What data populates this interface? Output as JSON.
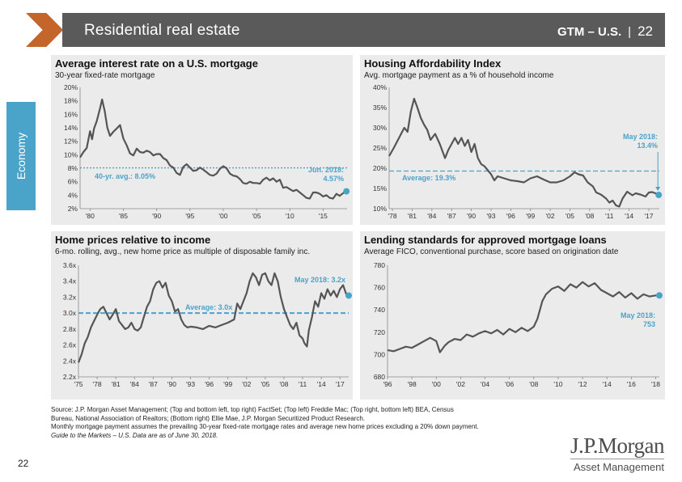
{
  "header": {
    "title": "Residential real estate",
    "tag": "GTM – U.S.",
    "separator": "|",
    "page": "22"
  },
  "side_tab": "Economy",
  "page_number": "22",
  "logo": {
    "line1": "J.P.Morgan",
    "line2": "Asset Management"
  },
  "footer": [
    "Source: J.P. Morgan Asset Management; (Top and bottom left, top right) FactSet; (Top left) Freddie Mac; (Top right, bottom left) BEA, Census",
    "Bureau, National Association of Realtors; (Bottom right) Ellie Mae, J.P. Morgan Securitized Product Research.",
    "Monthly mortgage payment assumes the prevailing 30-year fixed-rate mortgage rates and average new home prices excluding a 20% down payment.",
    "Guide to the Markets – U.S. Data are as of June 30, 2018."
  ],
  "colors": {
    "line": "#555555",
    "accent": "#4aa3c9",
    "panel": "#ebebeb",
    "header": "#5a5a5a",
    "arrow": "#c4652c"
  },
  "chart_data": [
    {
      "id": "mortgage",
      "type": "line",
      "title": "Average interest rate on a U.S. mortgage",
      "subtitle": "30-year fixed-rate mortgage",
      "ylim": [
        2,
        20
      ],
      "yticks": [
        2,
        4,
        6,
        8,
        10,
        12,
        14,
        16,
        18,
        20
      ],
      "yfmt": "{v}%",
      "xlim": [
        1978.5,
        2018.6
      ],
      "xticks": [
        1980,
        1985,
        1990,
        1995,
        2000,
        2005,
        2010,
        2015
      ],
      "xlabels": [
        "'80",
        "'85",
        "'90",
        "'95",
        "'00",
        "'05",
        "'10",
        "'15"
      ],
      "x": [
        1978.5,
        1979.0,
        1979.5,
        1980.0,
        1980.3,
        1980.6,
        1981.0,
        1981.5,
        1981.8,
        1982.2,
        1982.6,
        1983.0,
        1983.5,
        1984.0,
        1984.5,
        1985.0,
        1985.5,
        1986.0,
        1986.5,
        1987.0,
        1987.5,
        1988.0,
        1988.5,
        1989.0,
        1989.5,
        1990.0,
        1990.5,
        1991.0,
        1991.5,
        1992.0,
        1992.5,
        1993.0,
        1993.5,
        1994.0,
        1994.5,
        1995.0,
        1995.5,
        1996.0,
        1996.5,
        1997.0,
        1997.5,
        1998.0,
        1998.5,
        1999.0,
        1999.5,
        2000.0,
        2000.5,
        2001.0,
        2001.5,
        2002.0,
        2002.5,
        2003.0,
        2003.5,
        2004.0,
        2004.5,
        2005.0,
        2005.5,
        2006.0,
        2006.5,
        2007.0,
        2007.5,
        2008.0,
        2008.5,
        2009.0,
        2009.5,
        2010.0,
        2010.5,
        2011.0,
        2011.5,
        2012.0,
        2012.5,
        2013.0,
        2013.5,
        2014.0,
        2014.5,
        2015.0,
        2015.5,
        2016.0,
        2016.5,
        2017.0,
        2017.5,
        2018.0,
        2018.5
      ],
      "values": [
        9.6,
        10.4,
        11.0,
        13.5,
        12.3,
        13.9,
        15.0,
        16.9,
        18.2,
        16.5,
        14.0,
        12.8,
        13.4,
        13.9,
        14.4,
        12.4,
        11.4,
        10.2,
        9.9,
        10.9,
        10.4,
        10.3,
        10.6,
        10.4,
        9.9,
        10.1,
        10.1,
        9.5,
        9.2,
        8.4,
        8.1,
        7.3,
        7.0,
        8.2,
        8.6,
        8.1,
        7.6,
        7.7,
        8.1,
        7.8,
        7.4,
        7.0,
        6.9,
        7.2,
        7.9,
        8.3,
        8.0,
        7.2,
        6.9,
        6.8,
        6.4,
        5.8,
        5.7,
        6.0,
        5.8,
        5.8,
        5.7,
        6.3,
        6.6,
        6.2,
        6.5,
        6.0,
        6.3,
        5.1,
        5.2,
        4.9,
        4.6,
        4.8,
        4.4,
        4.0,
        3.6,
        3.5,
        4.4,
        4.4,
        4.2,
        3.8,
        4.0,
        3.6,
        3.5,
        4.2,
        3.9,
        4.3,
        4.57
      ],
      "avg": 8.05,
      "avg_label": "40-yr. avg.: 8.05%",
      "end_label": [
        "Jun. 2018:",
        "4.57%"
      ]
    },
    {
      "id": "affordability",
      "type": "line",
      "title": "Housing Affordability Index",
      "subtitle": "Avg. mortgage payment as a % of household income",
      "ylim": [
        10,
        40
      ],
      "yticks": [
        10,
        15,
        20,
        25,
        30,
        35,
        40
      ],
      "yfmt": "{v}%",
      "xlim": [
        1977.5,
        2018.6
      ],
      "xticks": [
        1978,
        1981,
        1984,
        1987,
        1990,
        1993,
        1996,
        1999,
        2002,
        2005,
        2008,
        2011,
        2014,
        2017
      ],
      "xlabels": [
        "'78",
        "'81",
        "'84",
        "'87",
        "'90",
        "'93",
        "'96",
        "'99",
        "'02",
        "'05",
        "'08",
        "'11",
        "'14",
        "'17"
      ],
      "x": [
        1977.5,
        1978.2,
        1979.0,
        1979.8,
        1980.3,
        1980.8,
        1981.3,
        1981.8,
        1982.3,
        1982.8,
        1983.3,
        1983.8,
        1984.5,
        1985.2,
        1986.0,
        1986.5,
        1987.0,
        1987.5,
        1988.0,
        1988.5,
        1989.0,
        1989.5,
        1990.0,
        1990.5,
        1991.0,
        1991.5,
        1992.0,
        1992.5,
        1993.0,
        1993.5,
        1994.0,
        1995.0,
        1996.0,
        1997.0,
        1998.0,
        1999.0,
        2000.0,
        2001.0,
        2002.0,
        2003.0,
        2004.0,
        2005.0,
        2005.7,
        2006.3,
        2007.0,
        2007.7,
        2008.5,
        2009.0,
        2009.7,
        2010.5,
        2011.0,
        2011.5,
        2012.0,
        2012.5,
        2013.0,
        2013.7,
        2014.5,
        2015.0,
        2015.7,
        2016.5,
        2017.0,
        2017.5,
        2018.0,
        2018.5
      ],
      "values": [
        23.0,
        25.0,
        27.5,
        30.0,
        29.0,
        34.0,
        37.2,
        35.0,
        32.5,
        30.8,
        29.5,
        27.0,
        28.5,
        26.0,
        22.5,
        24.5,
        26.0,
        27.5,
        26.0,
        27.5,
        25.5,
        27.0,
        24.0,
        26.0,
        22.5,
        21.0,
        20.5,
        19.5,
        18.5,
        17.0,
        18.0,
        17.5,
        17.0,
        16.8,
        16.5,
        17.5,
        18.0,
        17.2,
        16.5,
        16.5,
        17.0,
        18.0,
        19.0,
        18.5,
        18.2,
        16.5,
        15.5,
        14.0,
        13.5,
        12.5,
        11.5,
        12.0,
        10.8,
        10.5,
        12.5,
        14.2,
        13.3,
        13.8,
        13.5,
        13.0,
        14.0,
        14.1,
        13.8,
        13.4
      ],
      "avg": 19.3,
      "avg_label": "Average: 19.3%",
      "end_label": [
        "May 2018:",
        "13.4%"
      ]
    },
    {
      "id": "prices",
      "type": "line",
      "title": "Home prices relative to income",
      "subtitle": "6-mo. rolling, avg., new home price as multiple of disposable family inc.",
      "ylim": [
        2.2,
        3.6
      ],
      "yticks": [
        2.2,
        2.4,
        2.6,
        2.8,
        3.0,
        3.2,
        3.4,
        3.6
      ],
      "yfmt": "{v}x",
      "xlim": [
        1975.0,
        2018.4
      ],
      "xticks": [
        1975,
        1978,
        1981,
        1984,
        1987,
        1990,
        1993,
        1996,
        1999,
        2002,
        2005,
        2008,
        2011,
        2014,
        2017
      ],
      "xlabels": [
        "'75",
        "'78",
        "'81",
        "'84",
        "'87",
        "'90",
        "'93",
        "'96",
        "'99",
        "'02",
        "'05",
        "'08",
        "'11",
        "'14",
        "'17"
      ],
      "x": [
        1975.0,
        1975.5,
        1976.0,
        1976.5,
        1977.0,
        1977.5,
        1978.0,
        1978.5,
        1979.0,
        1979.5,
        1980.0,
        1980.5,
        1981.0,
        1981.5,
        1982.0,
        1982.5,
        1983.0,
        1983.5,
        1984.0,
        1984.5,
        1985.0,
        1985.5,
        1986.0,
        1986.5,
        1987.0,
        1987.5,
        1988.0,
        1988.5,
        1989.0,
        1989.5,
        1990.0,
        1990.5,
        1991.0,
        1991.5,
        1992.0,
        1992.5,
        1993.0,
        1994.0,
        1995.0,
        1996.0,
        1997.0,
        1998.0,
        1999.0,
        2000.0,
        2000.5,
        2001.0,
        2001.5,
        2002.0,
        2002.5,
        2003.0,
        2003.5,
        2004.0,
        2004.5,
        2005.0,
        2005.5,
        2006.0,
        2006.5,
        2007.0,
        2007.5,
        2008.0,
        2008.5,
        2009.0,
        2009.5,
        2010.0,
        2010.5,
        2011.0,
        2011.3,
        2011.7,
        2012.0,
        2012.5,
        2013.0,
        2013.5,
        2014.0,
        2014.5,
        2015.0,
        2015.5,
        2016.0,
        2016.5,
        2017.0,
        2017.5,
        2018.0,
        2018.4
      ],
      "values": [
        2.38,
        2.48,
        2.62,
        2.7,
        2.82,
        2.9,
        2.98,
        3.05,
        3.08,
        3.0,
        2.92,
        2.98,
        3.05,
        2.9,
        2.85,
        2.8,
        2.82,
        2.88,
        2.8,
        2.78,
        2.82,
        2.95,
        3.08,
        3.15,
        3.3,
        3.38,
        3.4,
        3.32,
        3.38,
        3.22,
        3.15,
        3.02,
        3.05,
        2.92,
        2.85,
        2.82,
        2.83,
        2.82,
        2.8,
        2.84,
        2.82,
        2.85,
        2.88,
        2.92,
        3.12,
        3.05,
        3.15,
        3.25,
        3.4,
        3.5,
        3.45,
        3.35,
        3.48,
        3.5,
        3.4,
        3.35,
        3.5,
        3.4,
        3.2,
        3.05,
        2.95,
        2.85,
        2.8,
        2.88,
        2.72,
        2.68,
        2.62,
        2.58,
        2.78,
        2.95,
        3.15,
        3.08,
        3.25,
        3.18,
        3.3,
        3.22,
        3.28,
        3.2,
        3.3,
        3.35,
        3.24,
        3.22
      ],
      "avg": 3.0,
      "avg_label": "Average: 3.0x",
      "end_label": [
        "May 2018: 3.2x"
      ]
    },
    {
      "id": "fico",
      "type": "line",
      "title": "Lending standards for approved mortgage loans",
      "subtitle": "Average FICO, conventional purchase, score based on origination date",
      "ylim": [
        680,
        780
      ],
      "yticks": [
        680,
        700,
        720,
        740,
        760,
        780
      ],
      "yfmt": "{v}",
      "xlim": [
        1996.0,
        2018.3
      ],
      "xticks": [
        1996,
        1998,
        2000,
        2002,
        2004,
        2006,
        2008,
        2010,
        2012,
        2014,
        2016,
        2018
      ],
      "xlabels": [
        "'96",
        "'98",
        "'00",
        "'02",
        "'04",
        "'06",
        "'08",
        "'10",
        "'12",
        "'14",
        "'16",
        "'18"
      ],
      "x": [
        1996.0,
        1996.5,
        1997.0,
        1997.5,
        1998.0,
        1998.5,
        1999.0,
        1999.5,
        2000.0,
        2000.3,
        2000.7,
        2001.0,
        2001.5,
        2002.0,
        2002.5,
        2003.0,
        2003.5,
        2004.0,
        2004.5,
        2005.0,
        2005.5,
        2006.0,
        2006.5,
        2007.0,
        2007.5,
        2008.0,
        2008.3,
        2008.7,
        2009.0,
        2009.5,
        2010.0,
        2010.5,
        2011.0,
        2011.5,
        2012.0,
        2012.5,
        2013.0,
        2013.5,
        2014.0,
        2014.5,
        2015.0,
        2015.5,
        2016.0,
        2016.5,
        2017.0,
        2017.5,
        2018.0,
        2018.3
      ],
      "values": [
        704,
        703,
        705,
        707,
        706,
        709,
        712,
        715,
        712,
        702,
        708,
        711,
        714,
        713,
        718,
        716,
        719,
        721,
        719,
        722,
        718,
        723,
        720,
        724,
        721,
        725,
        732,
        748,
        754,
        759,
        761,
        757,
        763,
        760,
        765,
        761,
        764,
        758,
        755,
        752,
        756,
        751,
        755,
        750,
        754,
        752,
        753,
        753
      ],
      "avg": null,
      "avg_label": "",
      "end_label": [
        "May 2018:",
        "753"
      ]
    }
  ]
}
